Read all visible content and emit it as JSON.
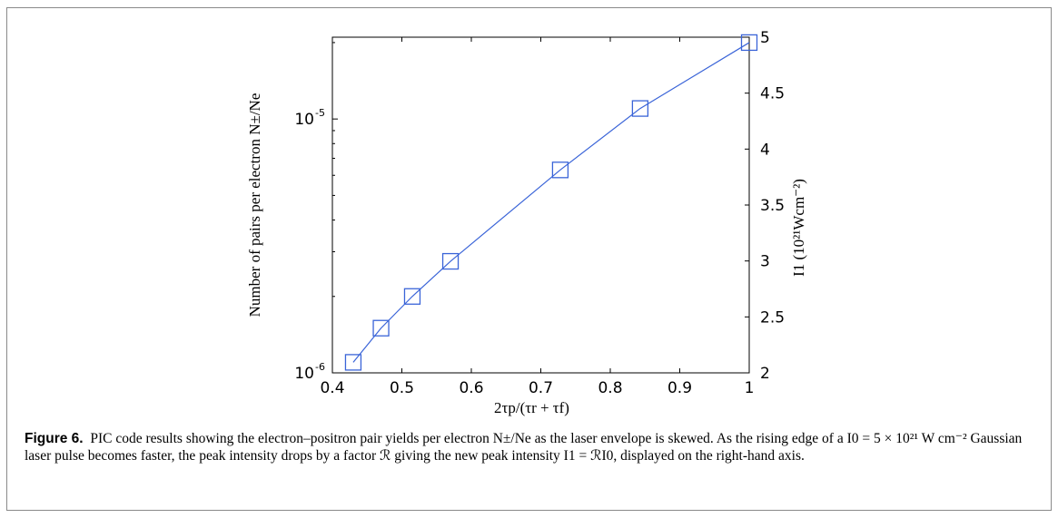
{
  "chart_data": {
    "type": "line",
    "xlabel": "2τp/(τr + τf)",
    "ylabel": "Number of pairs per electron N±/Ne",
    "y2label": "I1 (10²¹Wcm⁻²)",
    "xlim": [
      0.4,
      1.0
    ],
    "ylim": [
      1e-06,
      2.1e-05
    ],
    "yscale": "log",
    "y2lim": [
      2,
      5
    ],
    "grid": false,
    "xticks": [
      "0.4",
      "0.5",
      "0.6",
      "0.7",
      "0.8",
      "0.9",
      "1"
    ],
    "yticks": [
      {
        "value": 1e-06,
        "label": "10",
        "exp": "-6"
      },
      {
        "value": 1e-05,
        "label": "10",
        "exp": "-5"
      }
    ],
    "y2ticks": [
      "2",
      "2.5",
      "3",
      "3.5",
      "4",
      "4.5",
      "5"
    ],
    "marker": "square",
    "color": "#3a64d8",
    "x": [
      0.43,
      0.47,
      0.515,
      0.57,
      0.728,
      0.843,
      1.0
    ],
    "y": [
      1.1e-06,
      1.5e-06,
      2e-06,
      2.75e-06,
      6.3e-06,
      1.1e-05,
      2e-05
    ]
  },
  "caption": {
    "label": "Figure 6.",
    "text": "PIC code results showing the electron–positron pair yields per electron N±/Ne as the laser envelope is skewed. As the rising edge of a I0 = 5 × 10²¹ W cm⁻² Gaussian laser pulse becomes faster, the peak intensity drops by a factor ℛ giving the new peak intensity I1 = ℛI0, displayed on the right-hand axis."
  }
}
